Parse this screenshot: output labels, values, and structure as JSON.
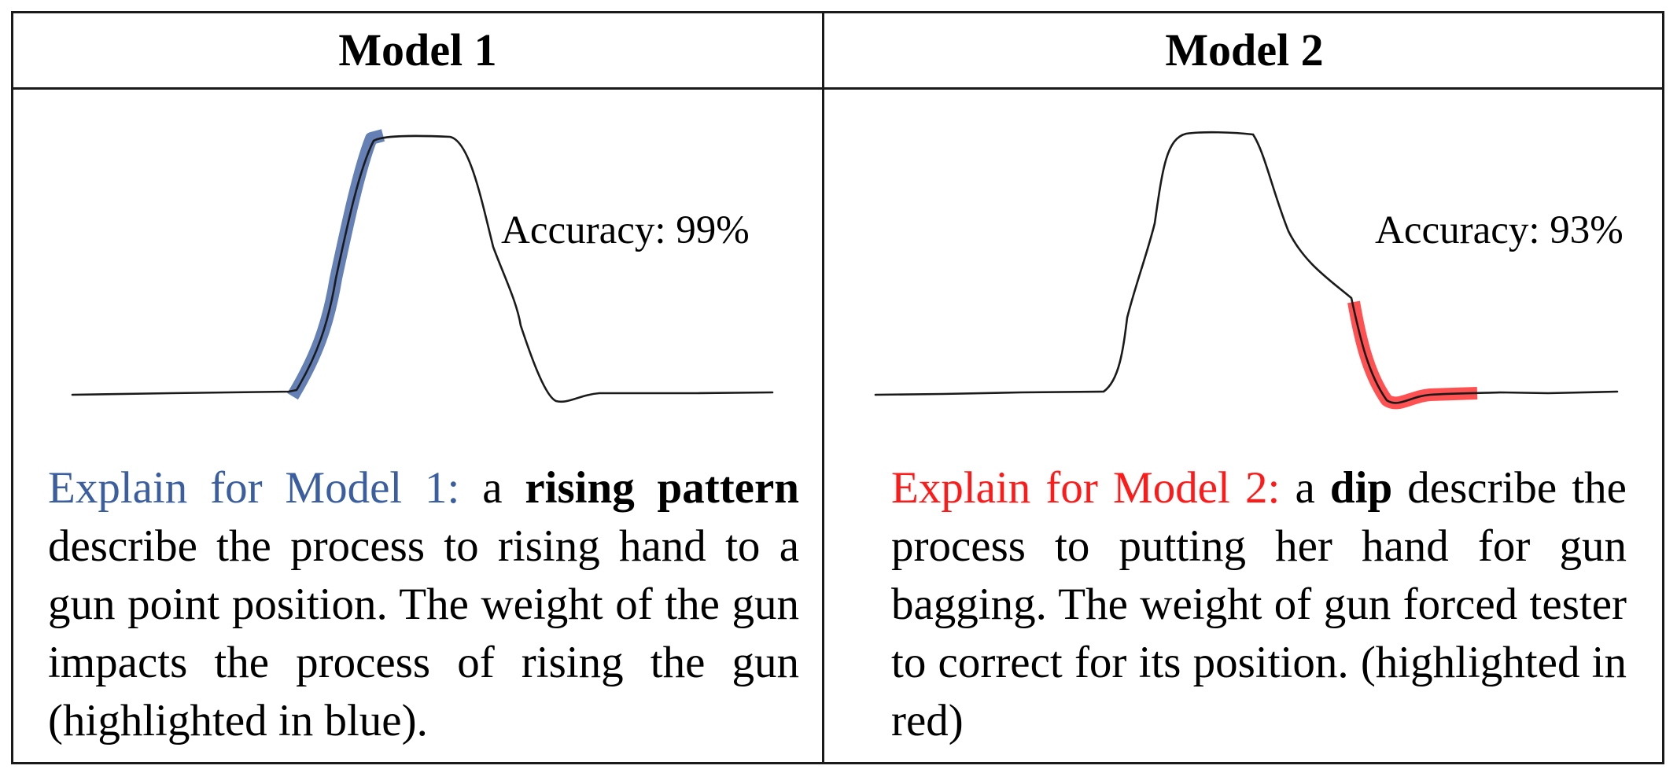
{
  "columns": [
    {
      "header": "Model 1",
      "accuracy_text": "Accuracy: 99%",
      "highlight_color": "#4a6aa8",
      "explain": {
        "lead": "Explain for Model 1:",
        "pre": " a ",
        "bold": "rising pattern",
        "rest": " describe the process to rising hand to a gun point position. The weight of the gun impacts the process of rising the gun (highlighted in blue)."
      }
    },
    {
      "header": "Model 2",
      "accuracy_text": "Accuracy: 93%",
      "highlight_color": "#ff3333",
      "explain": {
        "lead": "Explain for Model 2:",
        "pre": " a ",
        "bold": "dip",
        "rest": " describe the process to putting her hand for gun bagging. The weight of gun forced tester to correct for its position. (highlighted in red)"
      }
    }
  ],
  "colors": {
    "border": "#1a1a1a",
    "curve": "#1a1a1a",
    "model1_lead": "#3a5ea0",
    "model2_lead": "#ff1a1a"
  }
}
